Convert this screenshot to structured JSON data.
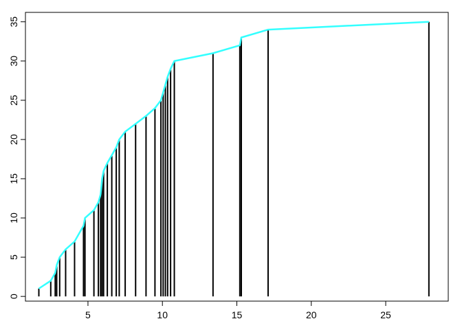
{
  "chart_data": {
    "type": "line",
    "title": "",
    "xlabel": "",
    "ylabel": "",
    "xlim": [
      0.8,
      29.2
    ],
    "ylim": [
      -0.6,
      36.2
    ],
    "x_ticks": [
      5,
      10,
      15,
      20,
      25
    ],
    "y_ticks": [
      0,
      5,
      10,
      15,
      20,
      25,
      30,
      35
    ],
    "grid": false,
    "colors": {
      "spikes": "#000000",
      "curve": "#33ffff",
      "frame": "#000000"
    },
    "series": [
      {
        "style": "spikes",
        "x": [
          1.7,
          2.5,
          2.8,
          2.9,
          3.1,
          3.5,
          4.1,
          4.7,
          4.8,
          5.4,
          5.7,
          5.85,
          5.95,
          6.05,
          6.3,
          6.6,
          6.9,
          7.1,
          7.5,
          8.2,
          8.9,
          9.5,
          9.9,
          10.05,
          10.2,
          10.35,
          10.55,
          10.8,
          13.4,
          15.2,
          15.3,
          17.1,
          27.9
        ],
        "y": [
          1,
          2,
          3,
          4,
          5,
          6,
          7,
          9,
          10,
          11,
          12,
          13,
          15,
          16,
          17,
          18,
          19,
          20,
          21,
          22,
          23,
          24,
          25,
          26,
          27,
          28,
          29,
          30,
          31,
          32,
          33,
          34,
          35
        ]
      },
      {
        "style": "line",
        "x": [
          1.7,
          2.5,
          2.8,
          2.9,
          3.1,
          3.5,
          4.1,
          4.7,
          4.8,
          5.4,
          5.7,
          5.85,
          5.95,
          6.05,
          6.3,
          6.6,
          6.9,
          7.1,
          7.5,
          8.2,
          8.9,
          9.5,
          9.9,
          10.05,
          10.2,
          10.35,
          10.55,
          10.8,
          13.4,
          15.2,
          15.3,
          17.1,
          27.9
        ],
        "y": [
          1,
          2,
          3,
          4,
          5,
          6,
          7,
          9,
          10,
          11,
          12,
          13,
          15,
          16,
          17,
          18,
          19,
          20,
          21,
          22,
          23,
          24,
          25,
          26,
          27,
          28,
          29,
          30,
          31,
          32,
          33,
          34,
          35
        ]
      }
    ]
  }
}
